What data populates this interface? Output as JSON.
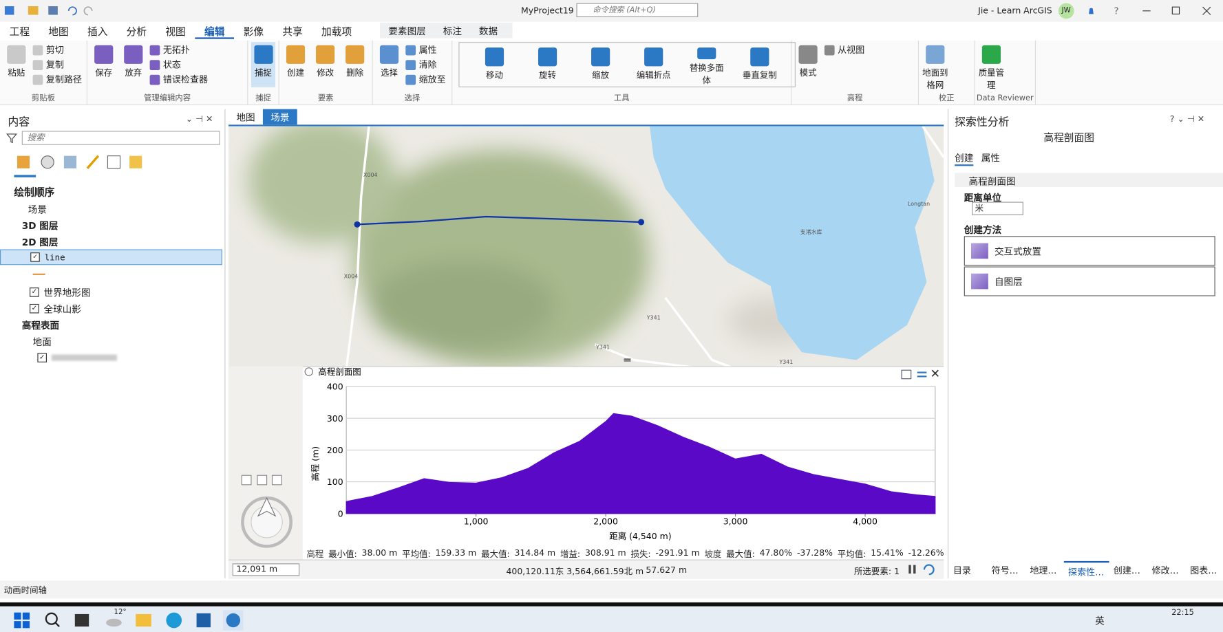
{
  "title_bar": {
    "project": "MyProject19",
    "search": "命令搜索 (Alt+Q)",
    "user": "Jie - Learn ArcGIS",
    "avatar": "JW"
  },
  "menu": {
    "tabs": [
      "工程",
      "地图",
      "插入",
      "分析",
      "视图",
      "编辑",
      "影像",
      "共享",
      "加载项"
    ],
    "context_tabs": [
      "要素图层",
      "标注",
      "数据"
    ]
  },
  "ribbon": {
    "groups": [
      {
        "label": "剪贴板",
        "large": [
          "粘贴"
        ],
        "small": [
          "剪切",
          "复制",
          "复制路径"
        ]
      },
      {
        "label": "管理编辑内容",
        "large": [
          "保存",
          "放弃"
        ],
        "small": [
          "无拓扑",
          "状态",
          "错误检查器"
        ]
      },
      {
        "label": "捕捉",
        "large": [
          "捕捉"
        ],
        "small": []
      },
      {
        "label": "要素",
        "large": [
          "创建",
          "修改",
          "删除"
        ],
        "small": []
      },
      {
        "label": "选择",
        "large": [
          "选择"
        ],
        "small": [
          "属性",
          "清除",
          "缩放至"
        ]
      },
      {
        "label": "工具",
        "large": [
          "移动",
          "旋转",
          "缩放",
          "编辑折点",
          "替换多面体",
          "垂直复制"
        ],
        "small": []
      },
      {
        "label": "高程",
        "large": [
          "模式"
        ],
        "small": [
          "从视图"
        ]
      },
      {
        "label": "校正",
        "large": [
          "地面到格网"
        ],
        "small": []
      },
      {
        "label": "Data Reviewer",
        "large": [
          "质量管理"
        ],
        "small": []
      }
    ]
  },
  "contents": {
    "title": "内容",
    "search": "搜索",
    "heading": "绘制顺序",
    "items": [
      "场景",
      "3D 图层",
      "2D 图层",
      "line",
      "世界地形图",
      "全球山影",
      "高程表面",
      "地面"
    ]
  },
  "view_tabs": [
    "地图",
    "场景"
  ],
  "map_labels": [
    "X004",
    "X004",
    "Y341",
    "Y341",
    "Y341",
    "Longtan",
    "支渚水库"
  ],
  "chart_data": {
    "type": "area",
    "title": "高程剖面图",
    "x_label": "距离 (4,540 m)",
    "y_label": "高程 (m)",
    "x": [
      0,
      200,
      400,
      600,
      800,
      1000,
      1200,
      1400,
      1600,
      1800,
      2000,
      2060,
      2200,
      2400,
      2600,
      2800,
      3000,
      3200,
      3400,
      3600,
      3800,
      4000,
      4200,
      4400,
      4540
    ],
    "values": [
      38,
      54,
      81,
      110,
      98,
      96,
      113,
      142,
      191,
      228,
      290,
      314.84,
      307,
      277,
      240,
      209,
      172,
      187,
      147,
      123,
      108,
      93,
      69,
      59,
      54
    ],
    "color": "#5a0ac6",
    "xlim": [
      0,
      4540
    ],
    "ylim": [
      0,
      400
    ],
    "xticks": [
      {
        "value": 1000,
        "label": "1,000"
      },
      {
        "value": 2000,
        "label": "2,000"
      },
      {
        "value": 3000,
        "label": "3,000"
      },
      {
        "value": 4000,
        "label": "4,000"
      }
    ],
    "yticks": [
      0,
      100,
      200,
      300,
      400
    ],
    "grid": true
  },
  "profile_stats": [
    "高程",
    "最小值:",
    "38.00 m",
    "平均值:",
    "159.33 m",
    "最大值:",
    "314.84 m",
    "增益:",
    "308.91 m",
    "损失:",
    "-291.91 m",
    "坡度",
    "最大值:",
    "47.80%",
    "-37.28%",
    "平均值:",
    "15.41%",
    "-12.26%"
  ],
  "status_bar": {
    "scale": "12,091 m",
    "coordinates": "400,120.11东 3,564,661.59北 m",
    "elevation": "57.627 m",
    "selected": "所选要素: 1"
  },
  "right_pane": {
    "title": "探索性分析",
    "tool": "高程剖面图",
    "tabs": [
      "创建",
      "属性"
    ],
    "section": "高程剖面图",
    "distance_label": "距离单位",
    "distance_unit": "米",
    "method_label": "创建方法",
    "methods": [
      "交互式放置",
      "自图层"
    ],
    "bottom_tabs": [
      "目录",
      "符号…",
      "地理…",
      "探索性…",
      "创建…",
      "修改…",
      "图表…"
    ]
  },
  "timeline": "动画时间轴",
  "taskbar": {
    "weather": "12°",
    "ime": "英",
    "time": "22:15"
  }
}
